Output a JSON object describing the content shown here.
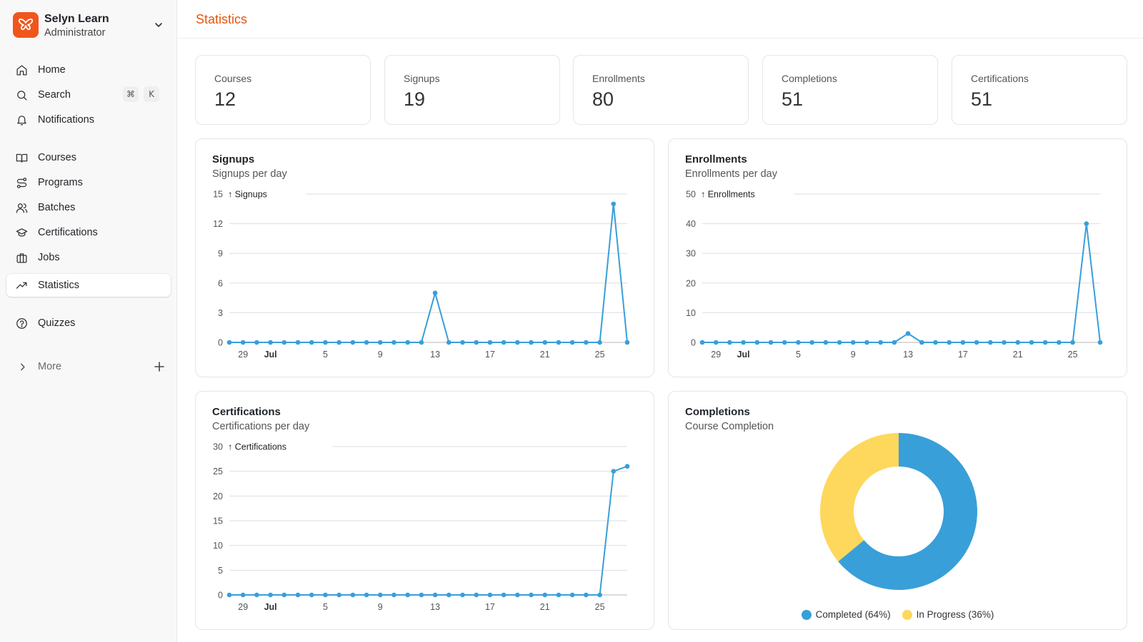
{
  "app": {
    "name": "Selyn Learn",
    "role": "Administrator",
    "brand_color": "#f0561c"
  },
  "sidebar": {
    "items": [
      {
        "label": "Home",
        "icon": "home-icon"
      },
      {
        "label": "Search",
        "icon": "search-icon",
        "shortcut": [
          "⌘",
          "K"
        ]
      },
      {
        "label": "Notifications",
        "icon": "bell-icon"
      },
      {
        "label": "Courses",
        "icon": "book-icon"
      },
      {
        "label": "Programs",
        "icon": "route-icon"
      },
      {
        "label": "Batches",
        "icon": "users-icon"
      },
      {
        "label": "Certifications",
        "icon": "graduation-cap-icon"
      },
      {
        "label": "Jobs",
        "icon": "briefcase-icon"
      },
      {
        "label": "Statistics",
        "icon": "trending-up-icon",
        "active": true
      },
      {
        "label": "Quizzes",
        "icon": "help-circle-icon"
      }
    ],
    "more_label": "More"
  },
  "header": {
    "title": "Statistics",
    "title_color": "#e4550e"
  },
  "stats": [
    {
      "label": "Courses",
      "value": "12"
    },
    {
      "label": "Signups",
      "value": "19"
    },
    {
      "label": "Enrollments",
      "value": "80"
    },
    {
      "label": "Completions",
      "value": "51"
    },
    {
      "label": "Certifications",
      "value": "51"
    }
  ],
  "cards": {
    "signups": {
      "title": "Signups",
      "subtitle": "Signups per day"
    },
    "enrollments": {
      "title": "Enrollments",
      "subtitle": "Enrollments per day"
    },
    "certifications": {
      "title": "Certifications",
      "subtitle": "Certifications per day"
    },
    "completions": {
      "title": "Completions",
      "subtitle": "Course Completion"
    }
  },
  "chart_data": [
    {
      "id": "signups",
      "type": "line",
      "title": "Signups",
      "subtitle": "Signups per day",
      "ylabel": "Signups",
      "ylim": [
        0,
        15
      ],
      "yticks": [
        0,
        3,
        6,
        9,
        12,
        15
      ],
      "x_tick_labels": [
        "29",
        "Jul",
        "5",
        "9",
        "13",
        "17",
        "21",
        "25"
      ],
      "x_start": "2024-06-28",
      "series": [
        {
          "name": "Signups",
          "color": "#389fd9",
          "values": [
            0,
            0,
            0,
            0,
            0,
            0,
            0,
            0,
            0,
            0,
            0,
            0,
            0,
            0,
            0,
            5,
            0,
            0,
            0,
            0,
            0,
            0,
            0,
            0,
            0,
            0,
            0,
            0,
            14,
            0
          ]
        }
      ],
      "grid": true
    },
    {
      "id": "enrollments",
      "type": "line",
      "title": "Enrollments",
      "subtitle": "Enrollments per day",
      "ylabel": "Enrollments",
      "ylim": [
        0,
        50
      ],
      "yticks": [
        0,
        10,
        20,
        30,
        40,
        50
      ],
      "x_tick_labels": [
        "29",
        "Jul",
        "5",
        "9",
        "13",
        "17",
        "21",
        "25"
      ],
      "series": [
        {
          "name": "Enrollments",
          "color": "#389fd9",
          "values": [
            0,
            0,
            0,
            0,
            0,
            0,
            0,
            0,
            0,
            0,
            0,
            0,
            0,
            0,
            0,
            3,
            0,
            0,
            0,
            0,
            0,
            0,
            0,
            0,
            0,
            0,
            0,
            0,
            40,
            0
          ]
        }
      ],
      "grid": true
    },
    {
      "id": "certifications",
      "type": "line",
      "title": "Certifications",
      "subtitle": "Certifications per day",
      "ylabel": "Certifications",
      "ylim": [
        0,
        30
      ],
      "yticks": [
        0,
        5,
        10,
        15,
        20,
        25,
        30
      ],
      "x_tick_labels": [
        "29",
        "Jul",
        "5",
        "9",
        "13",
        "17",
        "21",
        "25"
      ],
      "series": [
        {
          "name": "Certifications",
          "color": "#389fd9",
          "values": [
            0,
            0,
            0,
            0,
            0,
            0,
            0,
            0,
            0,
            0,
            0,
            0,
            0,
            0,
            0,
            0,
            0,
            0,
            0,
            0,
            0,
            0,
            0,
            0,
            0,
            0,
            0,
            0,
            25,
            26
          ]
        }
      ],
      "grid": true
    },
    {
      "id": "completions",
      "type": "pie",
      "title": "Completions",
      "subtitle": "Course Completion",
      "donut": true,
      "slices": [
        {
          "label": "Completed (64%)",
          "value": 64,
          "color": "#389fd9"
        },
        {
          "label": "In Progress (36%)",
          "value": 36,
          "color": "#fdd85c"
        }
      ],
      "legend": "bottom"
    }
  ]
}
